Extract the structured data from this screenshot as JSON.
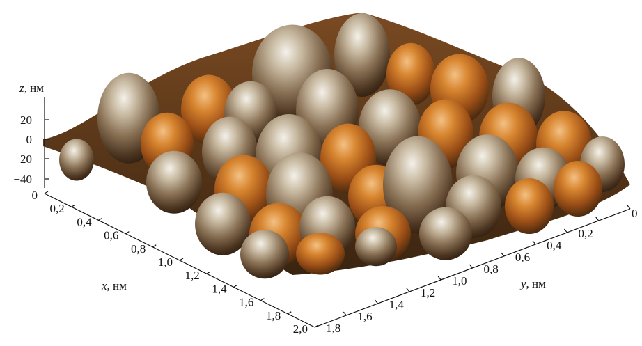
{
  "figure": {
    "z_axis": {
      "label_var": "z",
      "label_unit": ", нм",
      "ticks": [
        "20",
        "0",
        "−20",
        "−40"
      ]
    },
    "x_axis": {
      "label_var": "x",
      "label_unit": ", нм",
      "ticks": [
        "0",
        "0,2",
        "0,4",
        "0,6",
        "0,8",
        "1,0",
        "1,2",
        "1,4",
        "1,6",
        "1,8",
        "2,0"
      ]
    },
    "y_axis": {
      "label_var": "y",
      "label_unit": ", нм",
      "ticks": [
        "0",
        "0,2",
        "0,4",
        "0,6",
        "0,8",
        "1,0",
        "1,2",
        "1,4",
        "1,6",
        "1,8"
      ]
    },
    "surface": {
      "description_icon": "afm-surface-3d",
      "colors": {
        "highlight": "#f2efe8",
        "mid": "#8a7256",
        "shadow": "#3d2a18",
        "orange": "#c8641c",
        "red": "#a82a10"
      }
    }
  }
}
